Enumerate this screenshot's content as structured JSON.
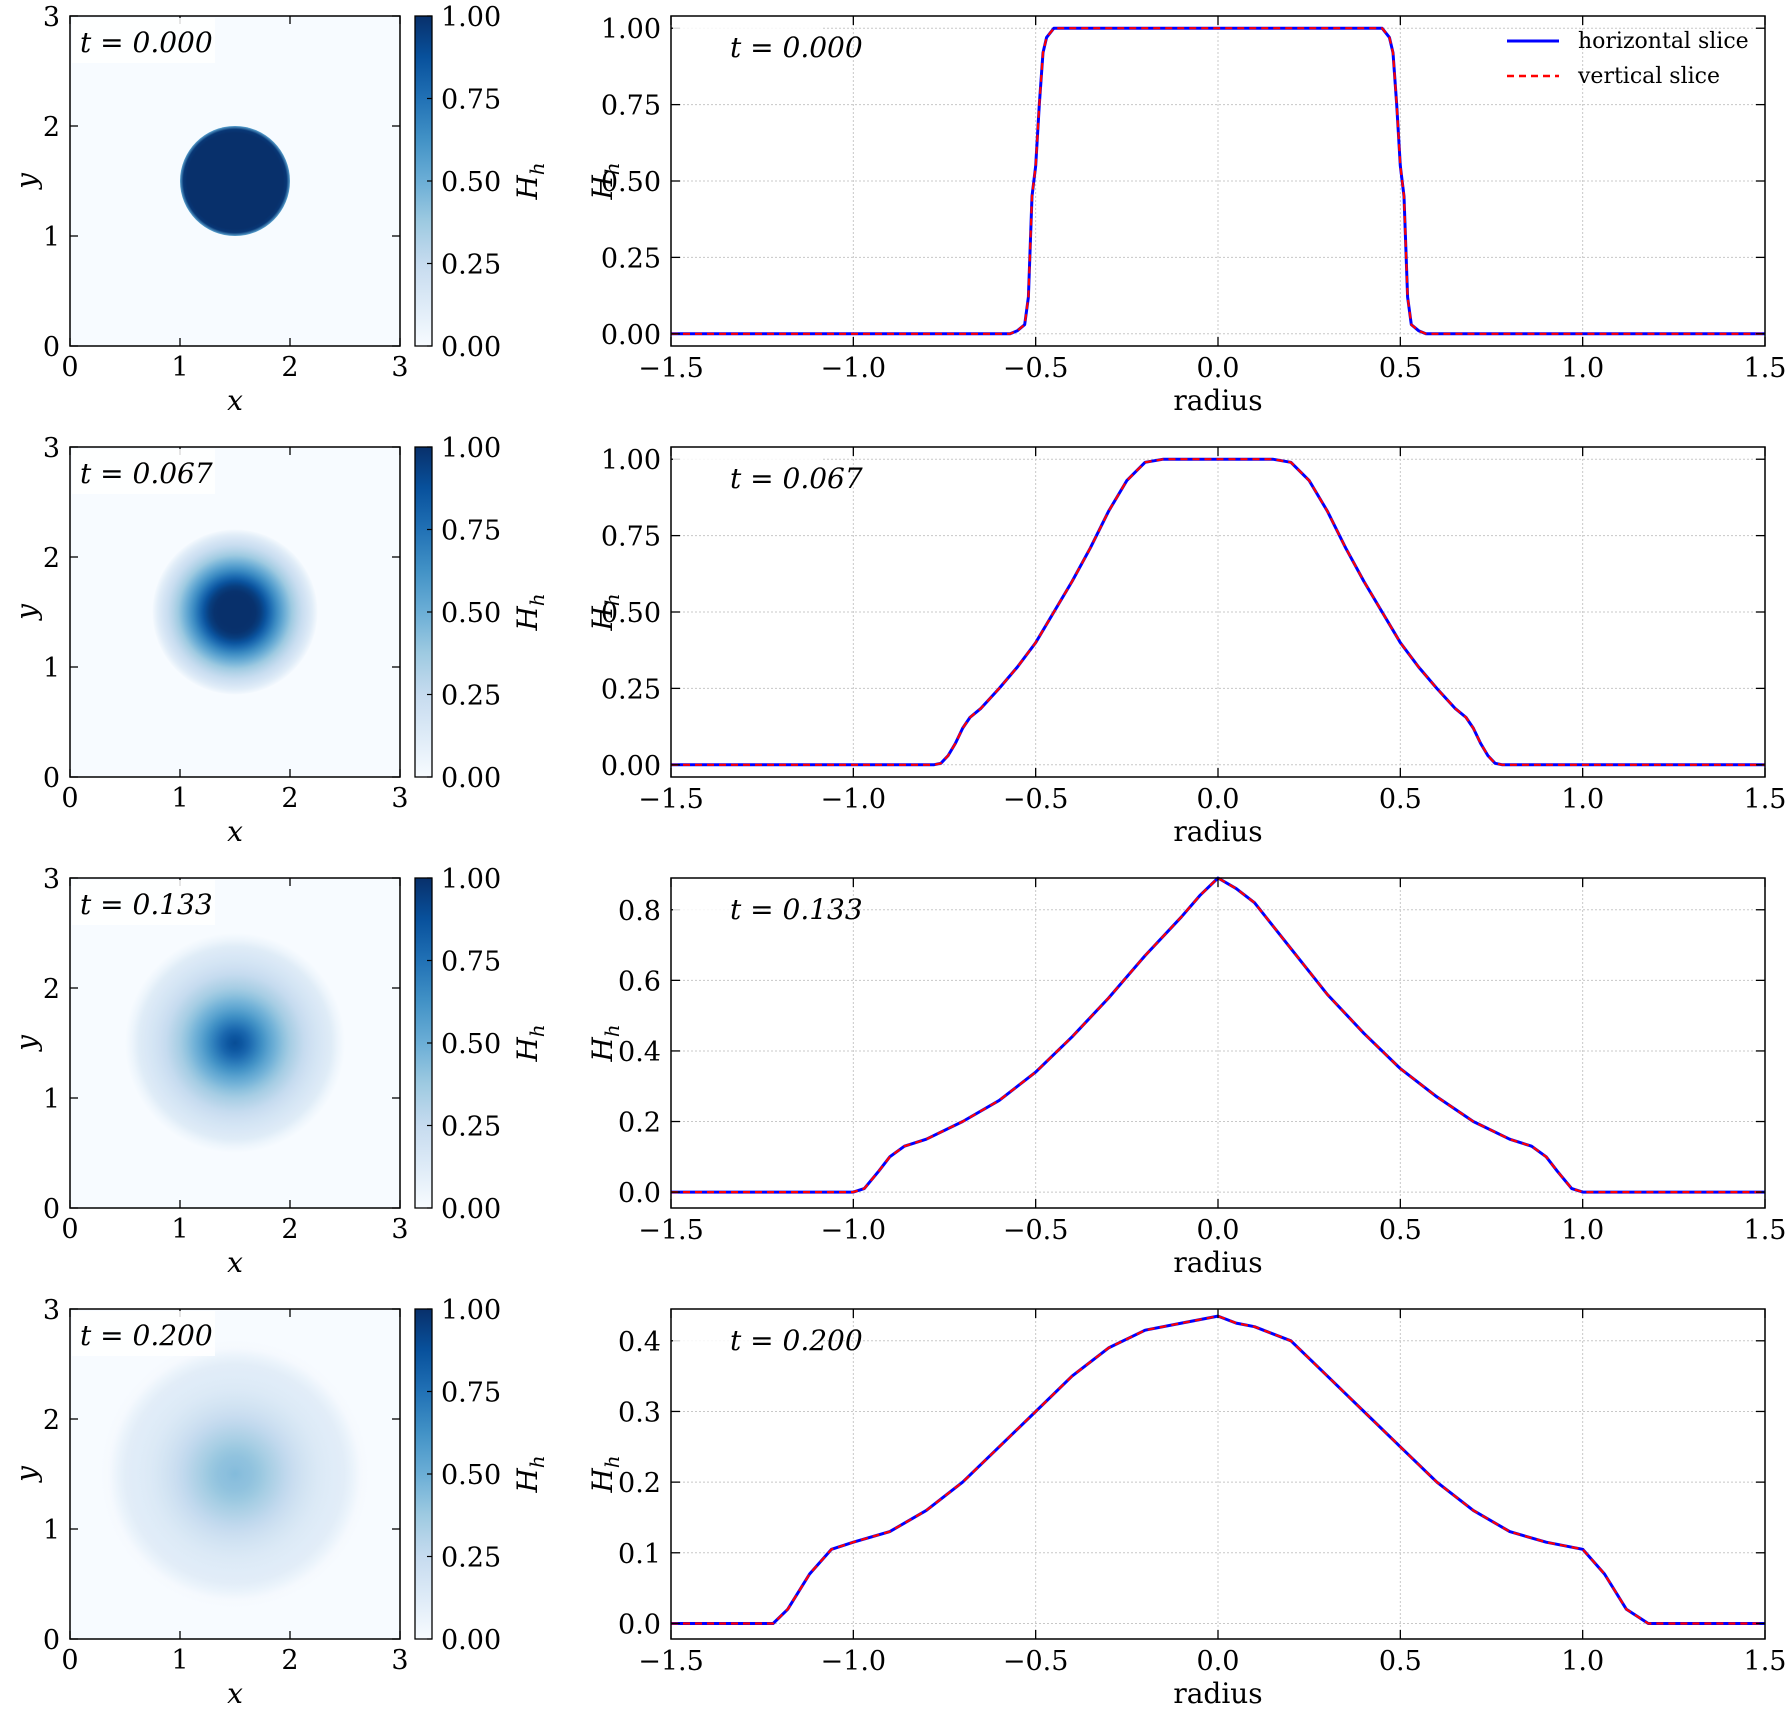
{
  "chart_data": [
    {
      "type": "heatmap",
      "time_label": "t = 0.000",
      "xlabel": "x",
      "ylabel": "y",
      "colorbar_label": "H_h",
      "xlim": [
        0,
        3
      ],
      "ylim": [
        0,
        3
      ],
      "x_ticks": [
        "0",
        "1",
        "2",
        "3"
      ],
      "y_ticks": [
        "0",
        "1",
        "2",
        "3"
      ],
      "colorbar_ticks": [
        "0.00",
        "0.25",
        "0.50",
        "0.75",
        "1.00"
      ],
      "colorbar_range": [
        0,
        1
      ],
      "colormap": "Blues",
      "center": [
        1.5,
        1.5
      ],
      "peak": 1.0,
      "support_radius": 0.5
    },
    {
      "type": "line",
      "time_label": "t = 0.000",
      "xlabel": "radius",
      "ylabel": "H_h",
      "xlim": [
        -1.5,
        1.5
      ],
      "ylim": [
        -0.04,
        1.04
      ],
      "x_ticks": [
        "−1.5",
        "−1.0",
        "−0.5",
        "0.0",
        "0.5",
        "1.0",
        "1.5"
      ],
      "y_ticks": [
        "0.00",
        "0.25",
        "0.50",
        "0.75",
        "1.00"
      ],
      "grid": true,
      "legend": {
        "position": "top-right",
        "entries": [
          "horizontal slice",
          "vertical slice"
        ]
      },
      "series": [
        {
          "name": "horizontal slice",
          "color": "#0000ff",
          "style": "solid"
        },
        {
          "name": "vertical slice",
          "color": "#ff0000",
          "style": "dashed"
        }
      ],
      "x": [
        -1.5,
        -0.6,
        -0.57,
        -0.55,
        -0.53,
        -0.52,
        -0.51,
        -0.5,
        -0.49,
        -0.48,
        -0.47,
        -0.45,
        -0.43,
        0,
        0.43,
        0.45,
        0.47,
        0.48,
        0.49,
        0.5,
        0.51,
        0.52,
        0.53,
        0.55,
        0.57,
        0.6,
        1.5
      ],
      "y": [
        0,
        0,
        0.0,
        0.01,
        0.03,
        0.12,
        0.45,
        0.55,
        0.75,
        0.92,
        0.97,
        1.0,
        1.0,
        1.0,
        1.0,
        1.0,
        0.97,
        0.92,
        0.75,
        0.55,
        0.45,
        0.12,
        0.03,
        0.01,
        0.0,
        0,
        0
      ]
    },
    {
      "type": "heatmap",
      "time_label": "t = 0.067",
      "xlabel": "x",
      "ylabel": "y",
      "colorbar_label": "H_h",
      "xlim": [
        0,
        3
      ],
      "ylim": [
        0,
        3
      ],
      "x_ticks": [
        "0",
        "1",
        "2",
        "3"
      ],
      "y_ticks": [
        "0",
        "1",
        "2",
        "3"
      ],
      "colorbar_ticks": [
        "0.00",
        "0.25",
        "0.50",
        "0.75",
        "1.00"
      ],
      "colorbar_range": [
        0,
        1
      ],
      "colormap": "Blues",
      "center": [
        1.5,
        1.5
      ],
      "peak": 1.0,
      "support_radius": 0.75
    },
    {
      "type": "line",
      "time_label": "t = 0.067",
      "xlabel": "radius",
      "ylabel": "H_h",
      "xlim": [
        -1.5,
        1.5
      ],
      "ylim": [
        -0.04,
        1.04
      ],
      "x_ticks": [
        "−1.5",
        "−1.0",
        "−0.5",
        "0.0",
        "0.5",
        "1.0",
        "1.5"
      ],
      "y_ticks": [
        "0.00",
        "0.25",
        "0.50",
        "0.75",
        "1.00"
      ],
      "grid": true,
      "series": [
        {
          "name": "horizontal slice",
          "color": "#0000ff",
          "style": "solid"
        },
        {
          "name": "vertical slice",
          "color": "#ff0000",
          "style": "dashed"
        }
      ],
      "x": [
        -1.5,
        -0.78,
        -0.76,
        -0.74,
        -0.72,
        -0.7,
        -0.68,
        -0.65,
        -0.6,
        -0.55,
        -0.5,
        -0.45,
        -0.4,
        -0.35,
        -0.3,
        -0.25,
        -0.2,
        -0.15,
        0,
        0.15,
        0.2,
        0.25,
        0.3,
        0.35,
        0.4,
        0.45,
        0.5,
        0.55,
        0.6,
        0.65,
        0.68,
        0.7,
        0.72,
        0.74,
        0.76,
        0.78,
        1.5
      ],
      "y": [
        0,
        0,
        0.005,
        0.03,
        0.07,
        0.12,
        0.155,
        0.185,
        0.25,
        0.32,
        0.4,
        0.5,
        0.6,
        0.71,
        0.83,
        0.93,
        0.99,
        1.0,
        1.0,
        1.0,
        0.99,
        0.93,
        0.83,
        0.71,
        0.6,
        0.5,
        0.4,
        0.32,
        0.25,
        0.185,
        0.155,
        0.12,
        0.07,
        0.03,
        0.005,
        0,
        0
      ]
    },
    {
      "type": "heatmap",
      "time_label": "t = 0.133",
      "xlabel": "x",
      "ylabel": "y",
      "colorbar_label": "H_h",
      "xlim": [
        0,
        3
      ],
      "ylim": [
        0,
        3
      ],
      "x_ticks": [
        "0",
        "1",
        "2",
        "3"
      ],
      "y_ticks": [
        "0",
        "1",
        "2",
        "3"
      ],
      "colorbar_ticks": [
        "0.00",
        "0.25",
        "0.50",
        "0.75",
        "1.00"
      ],
      "colorbar_range": [
        0,
        1
      ],
      "colormap": "Blues",
      "center": [
        1.5,
        1.5
      ],
      "peak": 0.89,
      "support_radius": 1.0
    },
    {
      "type": "line",
      "time_label": "t = 0.133",
      "xlabel": "radius",
      "ylabel": "H_h",
      "xlim": [
        -1.5,
        1.5
      ],
      "ylim": [
        -0.045,
        0.89
      ],
      "x_ticks": [
        "−1.5",
        "−1.0",
        "−0.5",
        "0.0",
        "0.5",
        "1.0",
        "1.5"
      ],
      "y_ticks": [
        "0.0",
        "0.2",
        "0.4",
        "0.6",
        "0.8"
      ],
      "grid": true,
      "series": [
        {
          "name": "horizontal slice",
          "color": "#0000ff",
          "style": "solid"
        },
        {
          "name": "vertical slice",
          "color": "#ff0000",
          "style": "dashed"
        }
      ],
      "x": [
        -1.5,
        -1.0,
        -0.97,
        -0.93,
        -0.9,
        -0.86,
        -0.8,
        -0.7,
        -0.6,
        -0.5,
        -0.4,
        -0.3,
        -0.2,
        -0.1,
        -0.05,
        0,
        0.05,
        0.1,
        0.2,
        0.3,
        0.4,
        0.5,
        0.6,
        0.7,
        0.8,
        0.86,
        0.9,
        0.93,
        0.97,
        1.0,
        1.5
      ],
      "y": [
        0,
        0,
        0.01,
        0.06,
        0.1,
        0.13,
        0.15,
        0.2,
        0.26,
        0.34,
        0.44,
        0.55,
        0.67,
        0.78,
        0.84,
        0.89,
        0.86,
        0.82,
        0.69,
        0.56,
        0.45,
        0.35,
        0.27,
        0.2,
        0.15,
        0.13,
        0.1,
        0.06,
        0.01,
        0,
        0
      ]
    },
    {
      "type": "heatmap",
      "time_label": "t = 0.200",
      "xlabel": "x",
      "ylabel": "y",
      "colorbar_label": "H_h",
      "xlim": [
        0,
        3
      ],
      "ylim": [
        0,
        3
      ],
      "x_ticks": [
        "0",
        "1",
        "2",
        "3"
      ],
      "y_ticks": [
        "0",
        "1",
        "2",
        "3"
      ],
      "colorbar_ticks": [
        "0.00",
        "0.25",
        "0.50",
        "0.75",
        "1.00"
      ],
      "colorbar_range": [
        0,
        1
      ],
      "colormap": "Blues",
      "center": [
        1.5,
        1.5
      ],
      "peak": 0.44,
      "support_radius": 1.22
    },
    {
      "type": "line",
      "time_label": "t = 0.200",
      "xlabel": "radius",
      "ylabel": "H_h",
      "xlim": [
        -1.5,
        1.5
      ],
      "ylim": [
        -0.022,
        0.445
      ],
      "x_ticks": [
        "−1.5",
        "−1.0",
        "−0.5",
        "0.0",
        "0.5",
        "1.0",
        "1.5"
      ],
      "y_ticks": [
        "0.0",
        "0.1",
        "0.2",
        "0.3",
        "0.4"
      ],
      "grid": true,
      "series": [
        {
          "name": "horizontal slice",
          "color": "#0000ff",
          "style": "solid"
        },
        {
          "name": "vertical slice",
          "color": "#ff0000",
          "style": "dashed"
        }
      ],
      "x": [
        -1.5,
        -1.22,
        -1.18,
        -1.12,
        -1.06,
        -1.0,
        -0.9,
        -0.8,
        -0.7,
        -0.6,
        -0.5,
        -0.4,
        -0.3,
        -0.2,
        -0.1,
        -0.05,
        0,
        0.05,
        0.1,
        0.2,
        0.3,
        0.4,
        0.5,
        0.6,
        0.7,
        0.8,
        0.9,
        1.0,
        1.06,
        1.12,
        1.18,
        1.22,
        1.5
      ],
      "y": [
        0,
        0,
        0.02,
        0.07,
        0.105,
        0.115,
        0.13,
        0.16,
        0.2,
        0.25,
        0.3,
        0.35,
        0.39,
        0.415,
        0.425,
        0.43,
        0.435,
        0.425,
        0.42,
        0.4,
        0.35,
        0.3,
        0.25,
        0.2,
        0.16,
        0.13,
        0.115,
        0.105,
        0.07,
        0.02,
        0,
        0,
        0
      ]
    }
  ]
}
